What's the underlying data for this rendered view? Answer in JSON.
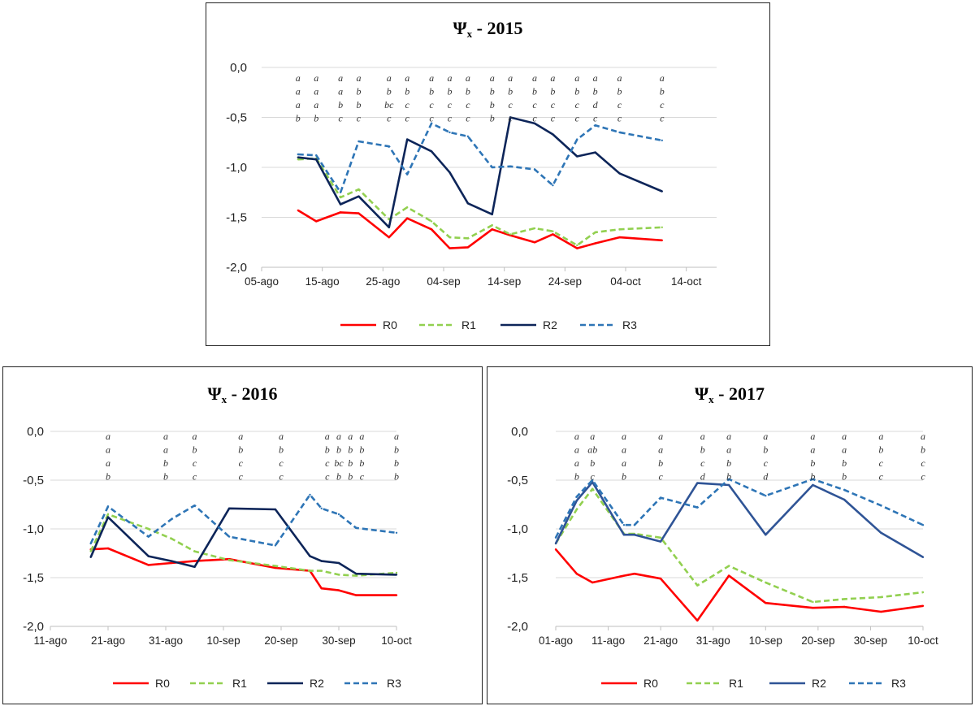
{
  "chart_data": [
    {
      "type": "line",
      "title": "Ψ",
      "title_sub": "x",
      "title_rest": " - 2015",
      "xlabel": "",
      "ylabel": "",
      "ylim": [
        -2.0,
        0.0
      ],
      "yticks": [
        0.0,
        -0.5,
        -1.0,
        -1.5,
        -2.0
      ],
      "ytick_labels": [
        "0,0",
        "-0,5",
        "-1,0",
        "-1,5",
        "-2,0"
      ],
      "xlim": [
        "2015-08-05",
        "2015-10-19"
      ],
      "xticks": [
        "2015-08-05",
        "2015-08-15",
        "2015-08-25",
        "2015-09-04",
        "2015-09-14",
        "2015-09-24",
        "2015-10-04",
        "2015-10-14"
      ],
      "xtick_labels": [
        "05-ago",
        "15-ago",
        "25-ago",
        "04-sep",
        "14-sep",
        "24-sep",
        "04-oct",
        "14-oct"
      ],
      "grid": true,
      "legend": "bottom",
      "x": [
        "2015-08-11",
        "2015-08-14",
        "2015-08-18",
        "2015-08-21",
        "2015-08-26",
        "2015-08-29",
        "2015-09-02",
        "2015-09-05",
        "2015-09-08",
        "2015-09-12",
        "2015-09-15",
        "2015-09-19",
        "2015-09-22",
        "2015-09-26",
        "2015-09-29",
        "2015-10-03",
        "2015-10-10"
      ],
      "series": [
        {
          "name": "R0",
          "color": "#ff0000",
          "dash": "solid",
          "values": [
            -1.43,
            -1.54,
            -1.45,
            -1.46,
            -1.7,
            -1.51,
            -1.62,
            -1.81,
            -1.8,
            -1.62,
            -1.68,
            -1.75,
            -1.67,
            -1.81,
            -1.76,
            -1.7,
            -1.73
          ]
        },
        {
          "name": "R1",
          "color": "#92d050",
          "dash": "dashed",
          "values": [
            -0.92,
            -0.91,
            -1.3,
            -1.22,
            -1.52,
            -1.4,
            -1.54,
            -1.7,
            -1.71,
            -1.58,
            -1.67,
            -1.61,
            -1.64,
            -1.78,
            -1.65,
            -1.62,
            -1.6
          ]
        },
        {
          "name": "R2",
          "color": "#0d2559",
          "dash": "solid",
          "values": [
            -0.9,
            -0.92,
            -1.37,
            -1.29,
            -1.6,
            -0.72,
            -0.84,
            -1.05,
            -1.36,
            -1.47,
            -0.5,
            -0.56,
            -0.67,
            -0.89,
            -0.85,
            -1.06,
            -1.24
          ]
        },
        {
          "name": "R3",
          "color": "#2e75b6",
          "dash": "dashed",
          "values": [
            -0.87,
            -0.88,
            -1.25,
            -0.74,
            -0.79,
            -1.07,
            -0.56,
            -0.65,
            -0.69,
            -1.0,
            -0.99,
            -1.02,
            -1.18,
            -0.72,
            -0.58,
            -0.65,
            -0.73
          ]
        }
      ],
      "significance": [
        [
          "a",
          "a",
          "a",
          "b"
        ],
        [
          "a",
          "a",
          "a",
          "b"
        ],
        [
          "a",
          "a",
          "b",
          "c"
        ],
        [
          "a",
          "b",
          "b",
          "c"
        ],
        [
          "a",
          "b",
          "bc",
          "c"
        ],
        [
          "a",
          "b",
          "c",
          "c"
        ],
        [
          "a",
          "b",
          "c",
          "c"
        ],
        [
          "a",
          "b",
          "c",
          "c"
        ],
        [
          "a",
          "b",
          "c",
          "c"
        ],
        [
          "a",
          "b",
          "b",
          "b"
        ],
        [
          "a",
          "b",
          "c",
          "c"
        ],
        [
          "a",
          "b",
          "c",
          "c"
        ],
        [
          "a",
          "b",
          "c",
          "c"
        ],
        [
          "a",
          "b",
          "c",
          "c"
        ],
        [
          "a",
          "b",
          "d",
          "c"
        ],
        [
          "a",
          "b",
          "c",
          "c"
        ],
        [
          "a",
          "b",
          "c",
          "c"
        ]
      ]
    },
    {
      "type": "line",
      "title": "Ψ",
      "title_sub": "x",
      "title_rest": " - 2016",
      "xlabel": "",
      "ylabel": "",
      "ylim": [
        -2.0,
        0.0
      ],
      "yticks": [
        0.0,
        -0.5,
        -1.0,
        -1.5,
        -2.0
      ],
      "ytick_labels": [
        "0,0",
        "-0,5",
        "-1,0",
        "-1,5",
        "-2,0"
      ],
      "xlim": [
        "2016-08-11",
        "2016-10-10"
      ],
      "xticks": [
        "2016-08-11",
        "2016-08-21",
        "2016-08-31",
        "2016-09-10",
        "2016-09-20",
        "2016-09-30",
        "2016-10-10"
      ],
      "xtick_labels": [
        "11-ago",
        "21-ago",
        "31-ago",
        "10-sep",
        "20-sep",
        "30-sep",
        "10-oct"
      ],
      "grid": true,
      "legend": "bottom",
      "x": [
        "2016-08-18",
        "2016-08-21",
        "2016-08-28",
        "2016-09-01",
        "2016-09-05",
        "2016-09-11",
        "2016-09-19",
        "2016-09-25",
        "2016-09-27",
        "2016-09-30",
        "2016-10-03",
        "2016-10-10"
      ],
      "series": [
        {
          "name": "R0",
          "color": "#ff0000",
          "dash": "solid",
          "values": [
            -1.21,
            -1.2,
            -1.37,
            -1.35,
            -1.33,
            -1.31,
            -1.4,
            -1.43,
            -1.61,
            -1.63,
            -1.68,
            -1.68
          ]
        },
        {
          "name": "R1",
          "color": "#92d050",
          "dash": "dashed",
          "values": [
            -1.23,
            -0.85,
            -1.0,
            -1.1,
            -1.23,
            -1.32,
            -1.38,
            -1.43,
            -1.43,
            -1.47,
            -1.48,
            -1.45
          ]
        },
        {
          "name": "R2",
          "color": "#0d2559",
          "dash": "solid",
          "values": [
            -1.29,
            -0.88,
            -1.28,
            -1.33,
            -1.39,
            -0.79,
            -0.8,
            -1.28,
            -1.33,
            -1.35,
            -1.46,
            -1.47
          ]
        },
        {
          "name": "R3",
          "color": "#2e75b6",
          "dash": "dashed",
          "values": [
            -1.15,
            -0.77,
            -1.08,
            -0.9,
            -0.76,
            -1.08,
            -1.17,
            -0.65,
            -0.79,
            -0.85,
            -0.99,
            -1.04
          ]
        }
      ],
      "significance": [
        [
          "a",
          "a",
          "a",
          "b"
        ],
        [
          "a",
          "a",
          "b",
          "b"
        ],
        [
          "a",
          "b",
          "c",
          "c"
        ],
        [
          "a",
          "b",
          "c",
          "c"
        ],
        [
          "a",
          "b",
          "c",
          "c"
        ],
        [
          "a",
          "b",
          "c",
          "c"
        ],
        [
          "a",
          "b",
          "bc",
          "b"
        ],
        [
          "a",
          "b",
          "b",
          "b"
        ],
        [
          "a",
          "b",
          "b",
          "c"
        ],
        [
          "a",
          "b",
          "b",
          "b"
        ]
      ],
      "significance_x": [
        "2016-08-21",
        "2016-08-31",
        "2016-09-05",
        "2016-09-13",
        "2016-09-20",
        "2016-09-28",
        "2016-09-30",
        "2016-10-02",
        "2016-10-04",
        "2016-10-10"
      ]
    },
    {
      "type": "line",
      "title": "Ψ",
      "title_sub": "x",
      "title_rest": " - 2017",
      "xlabel": "",
      "ylabel": "",
      "ylim": [
        -2.0,
        0.0
      ],
      "yticks": [
        0.0,
        -0.5,
        -1.0,
        -1.5,
        -2.0
      ],
      "ytick_labels": [
        "0,0",
        "-0,5",
        "-1,0",
        "-1,5",
        "-2,0"
      ],
      "xlim": [
        "2017-08-01",
        "2017-10-10"
      ],
      "xticks": [
        "2017-08-01",
        "2017-08-11",
        "2017-08-21",
        "2017-08-31",
        "2017-09-10",
        "2017-09-20",
        "2017-09-30",
        "2017-10-10"
      ],
      "xtick_labels": [
        "01-ago",
        "11-ago",
        "21-ago",
        "31-ago",
        "10-sep",
        "20-sep",
        "30-sep",
        "10-oct"
      ],
      "grid": true,
      "legend": "bottom",
      "x": [
        "2017-08-01",
        "2017-08-05",
        "2017-08-08",
        "2017-08-14",
        "2017-08-16",
        "2017-08-21",
        "2017-08-28",
        "2017-09-03",
        "2017-09-10",
        "2017-09-19",
        "2017-09-25",
        "2017-10-02",
        "2017-10-10"
      ],
      "series": [
        {
          "name": "R0",
          "color": "#ff0000",
          "dash": "solid",
          "values": [
            -1.21,
            -1.46,
            -1.55,
            -1.48,
            -1.46,
            -1.51,
            -1.94,
            -1.48,
            -1.76,
            -1.81,
            -1.8,
            -1.85,
            -1.79
          ]
        },
        {
          "name": "R1",
          "color": "#92d050",
          "dash": "dashed",
          "values": [
            -1.15,
            -0.8,
            -0.59,
            -1.05,
            -1.05,
            -1.09,
            -1.58,
            -1.38,
            -1.55,
            -1.75,
            -1.72,
            -1.7,
            -1.65
          ]
        },
        {
          "name": "R2",
          "color": "#2f5496",
          "dash": "solid",
          "values": [
            -1.15,
            -0.71,
            -0.52,
            -1.06,
            -1.06,
            -1.13,
            -0.53,
            -0.55,
            -1.06,
            -0.55,
            -0.7,
            -1.04,
            -1.29
          ]
        },
        {
          "name": "R3",
          "color": "#2e75b6",
          "dash": "dashed",
          "values": [
            -1.09,
            -0.67,
            -0.5,
            -0.96,
            -0.96,
            -0.68,
            -0.78,
            -0.49,
            -0.66,
            -0.49,
            -0.6,
            -0.76,
            -0.96
          ]
        }
      ],
      "significance": [
        [
          "a",
          "a",
          "a",
          "b"
        ],
        [
          "a",
          "ab",
          "b",
          "c"
        ],
        [
          "a",
          "a",
          "a",
          "b"
        ],
        [
          "a",
          "a",
          "b",
          "c"
        ],
        [
          "a",
          "b",
          "c",
          "d"
        ],
        [
          "a",
          "a",
          "b",
          "b"
        ],
        [
          "a",
          "b",
          "c",
          "d"
        ],
        [
          "a",
          "a",
          "b",
          "b"
        ],
        [
          "a",
          "a",
          "b",
          "b"
        ],
        [
          "a",
          "b",
          "c",
          "c"
        ],
        [
          "a",
          "b",
          "c",
          "c"
        ]
      ],
      "significance_x": [
        "2017-08-05",
        "2017-08-08",
        "2017-08-14",
        "2017-08-21",
        "2017-08-29",
        "2017-09-03",
        "2017-09-10",
        "2017-09-19",
        "2017-09-25",
        "2017-10-02",
        "2017-10-10"
      ]
    }
  ]
}
